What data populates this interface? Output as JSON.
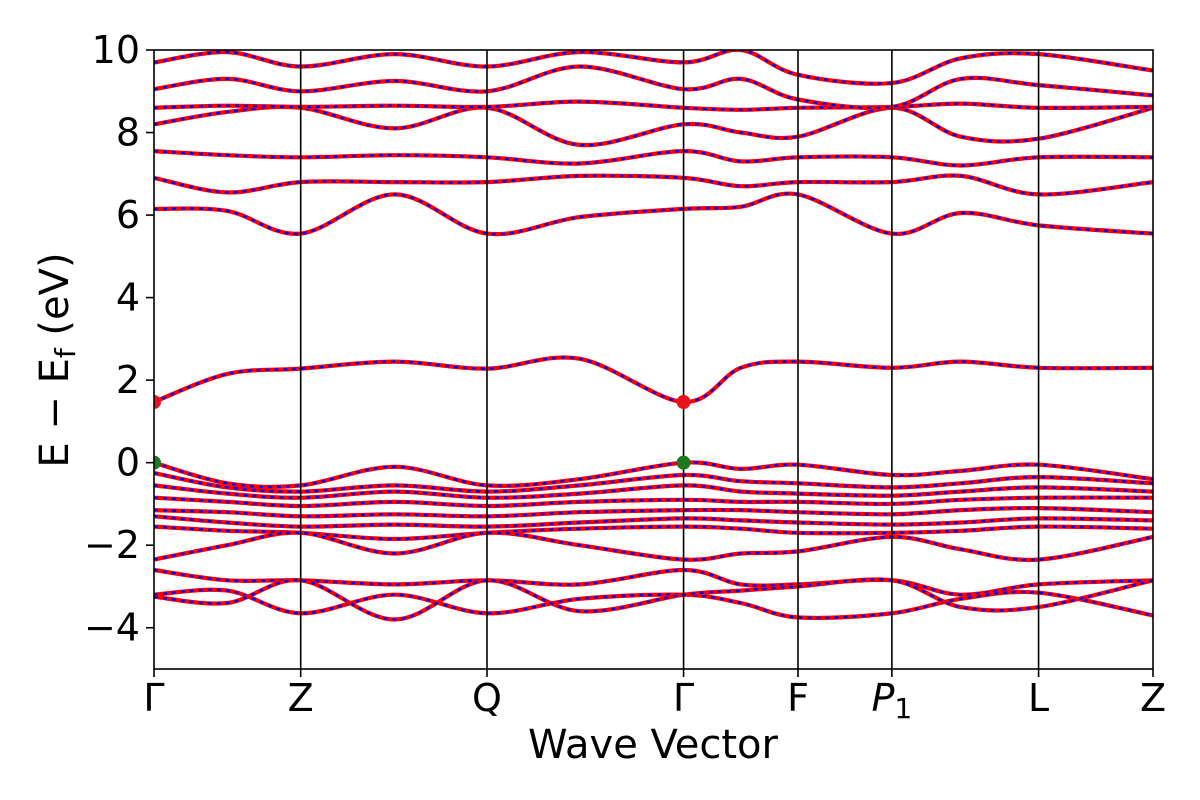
{
  "chart_data": {
    "type": "line",
    "title": "",
    "xlabel": "Wave Vector",
    "ylabel": {
      "main": "E − E",
      "sub": "f",
      "unit": " (eV)"
    },
    "ylim": [
      -5,
      10
    ],
    "yticks": [
      {
        "value": 10,
        "label": "10"
      },
      {
        "value": 8,
        "label": "8"
      },
      {
        "value": 6,
        "label": "6"
      },
      {
        "value": 4,
        "label": "4"
      },
      {
        "value": 2,
        "label": "2"
      },
      {
        "value": 0,
        "label": "0"
      },
      {
        "value": -2,
        "label": "−2"
      },
      {
        "value": -4,
        "label": "−4"
      }
    ],
    "kpoints": [
      {
        "label": "Γ",
        "sub": "",
        "x": 0.0
      },
      {
        "label": "Z",
        "sub": "",
        "x": 1.0
      },
      {
        "label": "Q",
        "sub": "",
        "x": 2.27
      },
      {
        "label": "Γ",
        "sub": "",
        "x": 3.61
      },
      {
        "label": "F",
        "sub": "",
        "x": 4.39
      },
      {
        "label": "P",
        "sub": "1",
        "x": 5.03
      },
      {
        "label": "L",
        "sub": "",
        "x": 6.03
      },
      {
        "label": "Z",
        "sub": "",
        "x": 6.81
      }
    ],
    "grid": false,
    "line_colors": {
      "solid": "#ff0000",
      "dashed": "#0000ff",
      "vline": "#000000"
    },
    "markers": [
      {
        "x": 0.0,
        "y": 1.47,
        "color": "#e8131f",
        "role": "CBM"
      },
      {
        "x": 3.61,
        "y": 1.47,
        "color": "#e8131f",
        "role": "CBM"
      },
      {
        "x": 0.0,
        "y": 0.0,
        "color": "#1b7a1b",
        "role": "VBM"
      },
      {
        "x": 3.61,
        "y": 0.0,
        "color": "#1b7a1b",
        "role": "VBM"
      }
    ],
    "bands": [
      [
        [
          0,
          1.47
        ],
        [
          0.5,
          2.15
        ],
        [
          1.0,
          2.28
        ],
        [
          1.64,
          2.45
        ],
        [
          2.27,
          2.28
        ],
        [
          2.9,
          2.52
        ],
        [
          3.61,
          1.47
        ],
        [
          4.0,
          2.3
        ],
        [
          4.39,
          2.45
        ],
        [
          5.03,
          2.3
        ],
        [
          5.5,
          2.45
        ],
        [
          6.03,
          2.3
        ],
        [
          6.81,
          2.3
        ]
      ],
      [
        [
          0,
          6.15
        ],
        [
          0.5,
          6.1
        ],
        [
          1.0,
          5.55
        ],
        [
          1.64,
          6.5
        ],
        [
          2.27,
          5.55
        ],
        [
          2.9,
          5.95
        ],
        [
          3.61,
          6.15
        ],
        [
          4.0,
          6.2
        ],
        [
          4.39,
          6.5
        ],
        [
          5.03,
          5.55
        ],
        [
          5.5,
          6.05
        ],
        [
          6.03,
          5.75
        ],
        [
          6.81,
          5.55
        ]
      ],
      [
        [
          0,
          6.9
        ],
        [
          0.5,
          6.55
        ],
        [
          1.0,
          6.8
        ],
        [
          1.64,
          6.8
        ],
        [
          2.27,
          6.8
        ],
        [
          2.9,
          6.95
        ],
        [
          3.61,
          6.9
        ],
        [
          4.0,
          6.7
        ],
        [
          4.39,
          6.8
        ],
        [
          5.03,
          6.8
        ],
        [
          5.5,
          6.95
        ],
        [
          6.03,
          6.5
        ],
        [
          6.81,
          6.8
        ]
      ],
      [
        [
          0,
          7.55
        ],
        [
          0.5,
          7.45
        ],
        [
          1.0,
          7.4
        ],
        [
          1.64,
          7.45
        ],
        [
          2.27,
          7.4
        ],
        [
          2.9,
          7.25
        ],
        [
          3.61,
          7.55
        ],
        [
          4.0,
          7.3
        ],
        [
          4.39,
          7.4
        ],
        [
          5.03,
          7.4
        ],
        [
          5.5,
          7.2
        ],
        [
          6.03,
          7.4
        ],
        [
          6.81,
          7.4
        ]
      ],
      [
        [
          0,
          8.2
        ],
        [
          0.5,
          8.5
        ],
        [
          1.0,
          8.6
        ],
        [
          1.64,
          8.1
        ],
        [
          2.27,
          8.6
        ],
        [
          2.9,
          7.7
        ],
        [
          3.61,
          8.2
        ],
        [
          4.0,
          8.0
        ],
        [
          4.39,
          7.9
        ],
        [
          5.03,
          8.6
        ],
        [
          5.5,
          7.9
        ],
        [
          6.03,
          7.85
        ],
        [
          6.81,
          8.6
        ]
      ],
      [
        [
          0,
          8.6
        ],
        [
          0.5,
          8.65
        ],
        [
          1.0,
          8.62
        ],
        [
          1.64,
          8.65
        ],
        [
          2.27,
          8.62
        ],
        [
          2.9,
          8.75
        ],
        [
          3.61,
          8.6
        ],
        [
          4.0,
          8.55
        ],
        [
          4.39,
          8.6
        ],
        [
          5.03,
          8.62
        ],
        [
          5.5,
          8.7
        ],
        [
          6.03,
          8.6
        ],
        [
          6.81,
          8.62
        ]
      ],
      [
        [
          0,
          9.05
        ],
        [
          0.5,
          9.3
        ],
        [
          1.0,
          9.0
        ],
        [
          1.64,
          9.25
        ],
        [
          2.27,
          9.0
        ],
        [
          2.9,
          9.6
        ],
        [
          3.61,
          9.05
        ],
        [
          4.0,
          9.3
        ],
        [
          4.39,
          8.8
        ],
        [
          5.03,
          8.62
        ],
        [
          5.5,
          9.3
        ],
        [
          6.03,
          9.15
        ],
        [
          6.81,
          8.9
        ]
      ],
      [
        [
          0,
          9.7
        ],
        [
          0.5,
          9.95
        ],
        [
          1.0,
          9.6
        ],
        [
          1.64,
          9.9
        ],
        [
          2.27,
          9.6
        ],
        [
          2.9,
          9.95
        ],
        [
          3.61,
          9.7
        ],
        [
          4.0,
          10.0
        ],
        [
          4.39,
          9.4
        ],
        [
          5.03,
          9.2
        ],
        [
          5.5,
          9.8
        ],
        [
          6.03,
          9.9
        ],
        [
          6.81,
          9.5
        ]
      ],
      [
        [
          0,
          0.0
        ],
        [
          0.5,
          -0.5
        ],
        [
          1.0,
          -0.55
        ],
        [
          1.64,
          -0.1
        ],
        [
          2.27,
          -0.55
        ],
        [
          2.9,
          -0.4
        ],
        [
          3.61,
          0.0
        ],
        [
          4.0,
          -0.15
        ],
        [
          4.39,
          -0.05
        ],
        [
          5.03,
          -0.3
        ],
        [
          5.5,
          -0.2
        ],
        [
          6.03,
          -0.05
        ],
        [
          6.81,
          -0.4
        ]
      ],
      [
        [
          0,
          -0.25
        ],
        [
          0.5,
          -0.6
        ],
        [
          1.0,
          -0.7
        ],
        [
          1.64,
          -0.55
        ],
        [
          2.27,
          -0.7
        ],
        [
          2.9,
          -0.55
        ],
        [
          3.61,
          -0.3
        ],
        [
          4.0,
          -0.45
        ],
        [
          4.39,
          -0.5
        ],
        [
          5.03,
          -0.6
        ],
        [
          5.5,
          -0.5
        ],
        [
          6.03,
          -0.35
        ],
        [
          6.81,
          -0.5
        ]
      ],
      [
        [
          0,
          -0.55
        ],
        [
          0.5,
          -0.75
        ],
        [
          1.0,
          -0.85
        ],
        [
          1.64,
          -0.7
        ],
        [
          2.27,
          -0.85
        ],
        [
          2.9,
          -0.75
        ],
        [
          3.61,
          -0.55
        ],
        [
          4.0,
          -0.7
        ],
        [
          4.39,
          -0.75
        ],
        [
          5.03,
          -0.8
        ],
        [
          5.5,
          -0.7
        ],
        [
          6.03,
          -0.6
        ],
        [
          6.81,
          -0.7
        ]
      ],
      [
        [
          0,
          -0.85
        ],
        [
          0.5,
          -0.95
        ],
        [
          1.0,
          -1.05
        ],
        [
          1.64,
          -0.95
        ],
        [
          2.27,
          -1.05
        ],
        [
          2.9,
          -0.95
        ],
        [
          3.61,
          -0.9
        ],
        [
          4.0,
          -0.95
        ],
        [
          4.39,
          -0.95
        ],
        [
          5.03,
          -1.0
        ],
        [
          5.5,
          -0.9
        ],
        [
          6.03,
          -0.85
        ],
        [
          6.81,
          -0.85
        ]
      ],
      [
        [
          0,
          -1.15
        ],
        [
          0.5,
          -1.2
        ],
        [
          1.0,
          -1.3
        ],
        [
          1.64,
          -1.25
        ],
        [
          2.27,
          -1.3
        ],
        [
          2.9,
          -1.2
        ],
        [
          3.61,
          -1.15
        ],
        [
          4.0,
          -1.15
        ],
        [
          4.39,
          -1.2
        ],
        [
          5.03,
          -1.25
        ],
        [
          5.5,
          -1.15
        ],
        [
          6.03,
          -1.1
        ],
        [
          6.81,
          -1.2
        ]
      ],
      [
        [
          0,
          -1.3
        ],
        [
          0.5,
          -1.45
        ],
        [
          1.0,
          -1.55
        ],
        [
          1.64,
          -1.5
        ],
        [
          2.27,
          -1.55
        ],
        [
          2.9,
          -1.45
        ],
        [
          3.61,
          -1.35
        ],
        [
          4.0,
          -1.4
        ],
        [
          4.39,
          -1.45
        ],
        [
          5.03,
          -1.5
        ],
        [
          5.5,
          -1.45
        ],
        [
          6.03,
          -1.35
        ],
        [
          6.81,
          -1.4
        ]
      ],
      [
        [
          0,
          -1.55
        ],
        [
          0.5,
          -1.65
        ],
        [
          1.0,
          -1.7
        ],
        [
          1.64,
          -1.85
        ],
        [
          2.27,
          -1.7
        ],
        [
          2.9,
          -1.6
        ],
        [
          3.61,
          -1.55
        ],
        [
          4.0,
          -1.6
        ],
        [
          4.39,
          -1.7
        ],
        [
          5.03,
          -1.7
        ],
        [
          5.5,
          -1.65
        ],
        [
          6.03,
          -1.55
        ],
        [
          6.81,
          -1.6
        ]
      ],
      [
        [
          0,
          -2.35
        ],
        [
          0.5,
          -2.0
        ],
        [
          1.0,
          -1.7
        ],
        [
          1.64,
          -2.2
        ],
        [
          2.27,
          -1.7
        ],
        [
          2.9,
          -2.0
        ],
        [
          3.61,
          -2.35
        ],
        [
          4.0,
          -2.2
        ],
        [
          4.39,
          -2.15
        ],
        [
          5.03,
          -1.8
        ],
        [
          5.5,
          -2.1
        ],
        [
          6.03,
          -2.35
        ],
        [
          6.81,
          -1.8
        ]
      ],
      [
        [
          0,
          -2.6
        ],
        [
          0.5,
          -2.85
        ],
        [
          1.0,
          -2.85
        ],
        [
          1.64,
          -2.95
        ],
        [
          2.27,
          -2.85
        ],
        [
          2.9,
          -2.95
        ],
        [
          3.61,
          -2.6
        ],
        [
          4.0,
          -2.95
        ],
        [
          4.39,
          -2.95
        ],
        [
          5.03,
          -2.85
        ],
        [
          5.5,
          -3.2
        ],
        [
          6.03,
          -2.95
        ],
        [
          6.81,
          -2.85
        ]
      ],
      [
        [
          0,
          -3.2
        ],
        [
          0.5,
          -3.1
        ],
        [
          1.0,
          -3.65
        ],
        [
          1.64,
          -3.2
        ],
        [
          2.27,
          -3.65
        ],
        [
          2.9,
          -3.3
        ],
        [
          3.61,
          -3.2
        ],
        [
          4.0,
          -3.4
        ],
        [
          4.39,
          -3.75
        ],
        [
          5.03,
          -3.65
        ],
        [
          5.5,
          -3.3
        ],
        [
          6.03,
          -3.15
        ],
        [
          6.81,
          -3.7
        ]
      ],
      [
        [
          0,
          -3.25
        ],
        [
          0.5,
          -3.4
        ],
        [
          1.0,
          -2.85
        ],
        [
          1.64,
          -3.8
        ],
        [
          2.27,
          -2.85
        ],
        [
          2.9,
          -3.6
        ],
        [
          3.61,
          -3.2
        ],
        [
          4.0,
          -3.1
        ],
        [
          4.39,
          -3.0
        ],
        [
          5.03,
          -2.85
        ],
        [
          5.5,
          -3.5
        ],
        [
          6.03,
          -3.5
        ],
        [
          6.81,
          -2.85
        ]
      ]
    ]
  }
}
